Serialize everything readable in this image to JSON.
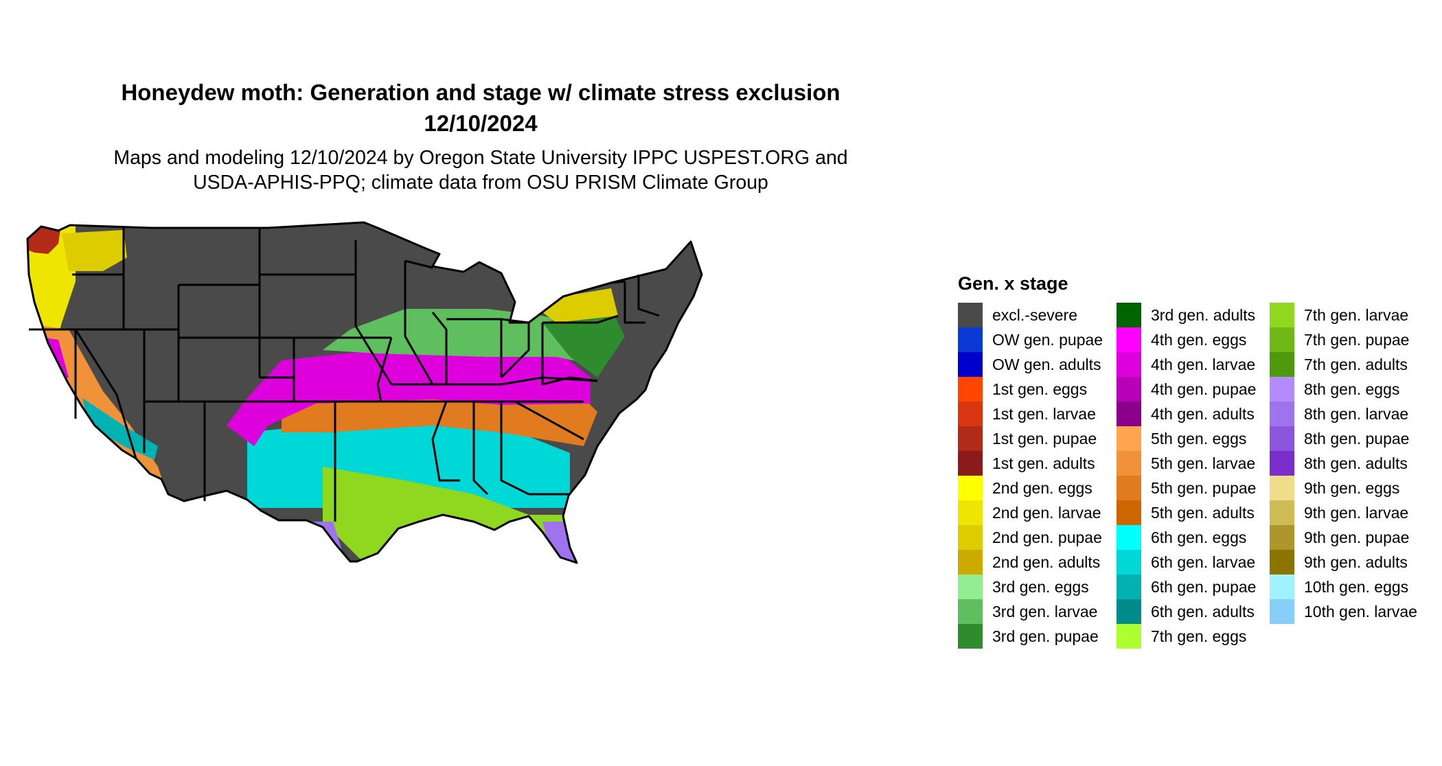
{
  "title_line1": "Honeydew moth: Generation and stage w/ climate stress exclusion",
  "title_line2": "12/10/2024",
  "subtitle_line1": "Maps and modeling 12/10/2024 by Oregon State University IPPC USPEST.ORG and",
  "subtitle_line2": "USDA-APHIS-PPQ; climate data from OSU PRISM Climate Group",
  "legend": {
    "title": "Gen. x stage",
    "items": [
      {
        "label": "excl.-severe",
        "color": "#4a4a4a"
      },
      {
        "label": "OW gen. pupae",
        "color": "#0a3ad6"
      },
      {
        "label": "OW gen. adults",
        "color": "#0000cc"
      },
      {
        "label": "1st gen. eggs",
        "color": "#ff4500"
      },
      {
        "label": "1st gen. larvae",
        "color": "#d9360f"
      },
      {
        "label": "1st gen. pupae",
        "color": "#b22a18"
      },
      {
        "label": "1st gen. adults",
        "color": "#8b1a1a"
      },
      {
        "label": "2nd gen. eggs",
        "color": "#ffff00"
      },
      {
        "label": "2nd gen. larvae",
        "color": "#eee600"
      },
      {
        "label": "2nd gen. pupae",
        "color": "#ddcc00"
      },
      {
        "label": "2nd gen. adults",
        "color": "#cdaa00"
      },
      {
        "label": "3rd gen. eggs",
        "color": "#90ee90"
      },
      {
        "label": "3rd gen. larvae",
        "color": "#5fbf5f"
      },
      {
        "label": "3rd gen. pupae",
        "color": "#2e8b2e"
      },
      {
        "label": "3rd gen. adults",
        "color": "#006400"
      },
      {
        "label": "4th gen. eggs",
        "color": "#ff00ff"
      },
      {
        "label": "4th gen. larvae",
        "color": "#dd00dd"
      },
      {
        "label": "4th gen. pupae",
        "color": "#b800b8"
      },
      {
        "label": "4th gen. adults",
        "color": "#8b008b"
      },
      {
        "label": "5th gen. eggs",
        "color": "#ffa54f"
      },
      {
        "label": "5th gen. larvae",
        "color": "#f0923a"
      },
      {
        "label": "5th gen. pupae",
        "color": "#e07b1f"
      },
      {
        "label": "5th gen. adults",
        "color": "#cd6600"
      },
      {
        "label": "6th gen. eggs",
        "color": "#00ffff"
      },
      {
        "label": "6th gen. larvae",
        "color": "#00d8d8"
      },
      {
        "label": "6th gen. pupae",
        "color": "#00b2b2"
      },
      {
        "label": "6th gen. adults",
        "color": "#008b8b"
      },
      {
        "label": "7th gen. eggs",
        "color": "#adff2f"
      },
      {
        "label": "7th gen. larvae",
        "color": "#8fd81f"
      },
      {
        "label": "7th gen. pupae",
        "color": "#6fb815"
      },
      {
        "label": "7th gen. adults",
        "color": "#4d9a0c"
      },
      {
        "label": "8th gen. eggs",
        "color": "#b28cff"
      },
      {
        "label": "8th gen. larvae",
        "color": "#9f72ee"
      },
      {
        "label": "8th gen. pupae",
        "color": "#8c55dd"
      },
      {
        "label": "8th gen. adults",
        "color": "#7a2fcc"
      },
      {
        "label": "9th gen. eggs",
        "color": "#efdd8a"
      },
      {
        "label": "9th gen. larvae",
        "color": "#cfbb55"
      },
      {
        "label": "9th gen. pupae",
        "color": "#ad962c"
      },
      {
        "label": "9th gen. adults",
        "color": "#8b7500"
      },
      {
        "label": "10th gen. eggs",
        "color": "#a0f2ff"
      },
      {
        "label": "10th gen. larvae",
        "color": "#87cefa"
      }
    ]
  }
}
